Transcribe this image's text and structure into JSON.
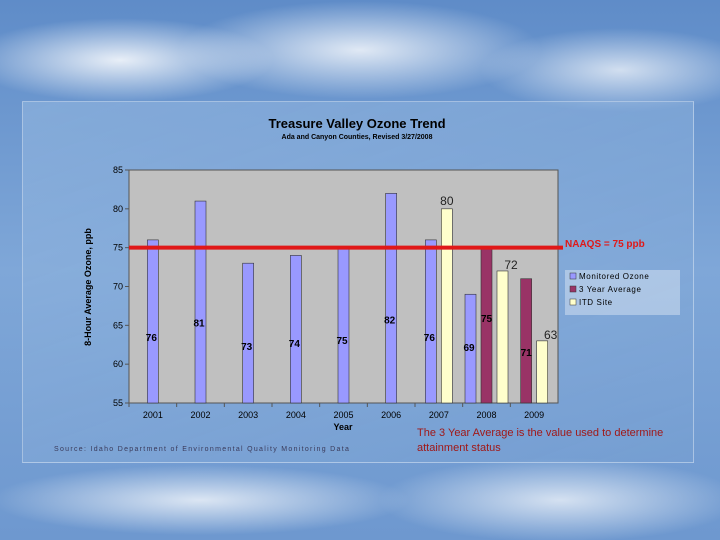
{
  "chart_data": {
    "type": "bar",
    "title": "Treasure Valley Ozone Trend",
    "subtitle": "Ada and Canyon Counties, Revised 3/27/2008",
    "xlabel": "Year",
    "ylabel": "8-Hour Average Ozone, ppb",
    "ylim": [
      55,
      85
    ],
    "yticks": [
      "55",
      "60",
      "65",
      "70",
      "75",
      "80",
      "85"
    ],
    "grid": false,
    "legend_position": "right",
    "categories": [
      "2001",
      "2002",
      "2003",
      "2004",
      "2005",
      "2006",
      "2007",
      "2008",
      "2009"
    ],
    "series": [
      {
        "name": "Monitored Ozone",
        "color": "#9999ff",
        "values": [
          76,
          81,
          73,
          74,
          75,
          82,
          76,
          69,
          null
        ],
        "labels": [
          "76",
          "81",
          "73",
          "74",
          "75",
          "82",
          "76",
          "69",
          ""
        ]
      },
      {
        "name": "3 Year Average",
        "color": "#993366",
        "values": [
          null,
          null,
          null,
          null,
          null,
          null,
          null,
          75,
          71
        ],
        "labels": [
          "",
          "",
          "",
          "",
          "",
          "",
          "",
          "75",
          "71"
        ]
      },
      {
        "name": "ITD Site",
        "color": "#ffffcc",
        "values": [
          null,
          null,
          null,
          null,
          null,
          null,
          80,
          72,
          63
        ],
        "labels": [
          "",
          "",
          "",
          "",
          "",
          "",
          "80",
          "72",
          "63"
        ]
      }
    ],
    "reference_line": {
      "value": 75,
      "label": "NAAQS = 75 ppb",
      "color": "#e01818"
    },
    "notes": {
      "source": "Source: Idaho Department of Environmental Quality Monitoring Data",
      "footnote_line1": "The 3 Year Average is the value used to determine",
      "footnote_line2": "attainment status"
    },
    "colors": {
      "plot_bg": "#c0c0c0",
      "axis": "#555555",
      "text": "#000000",
      "note_text": "#a01818"
    }
  }
}
